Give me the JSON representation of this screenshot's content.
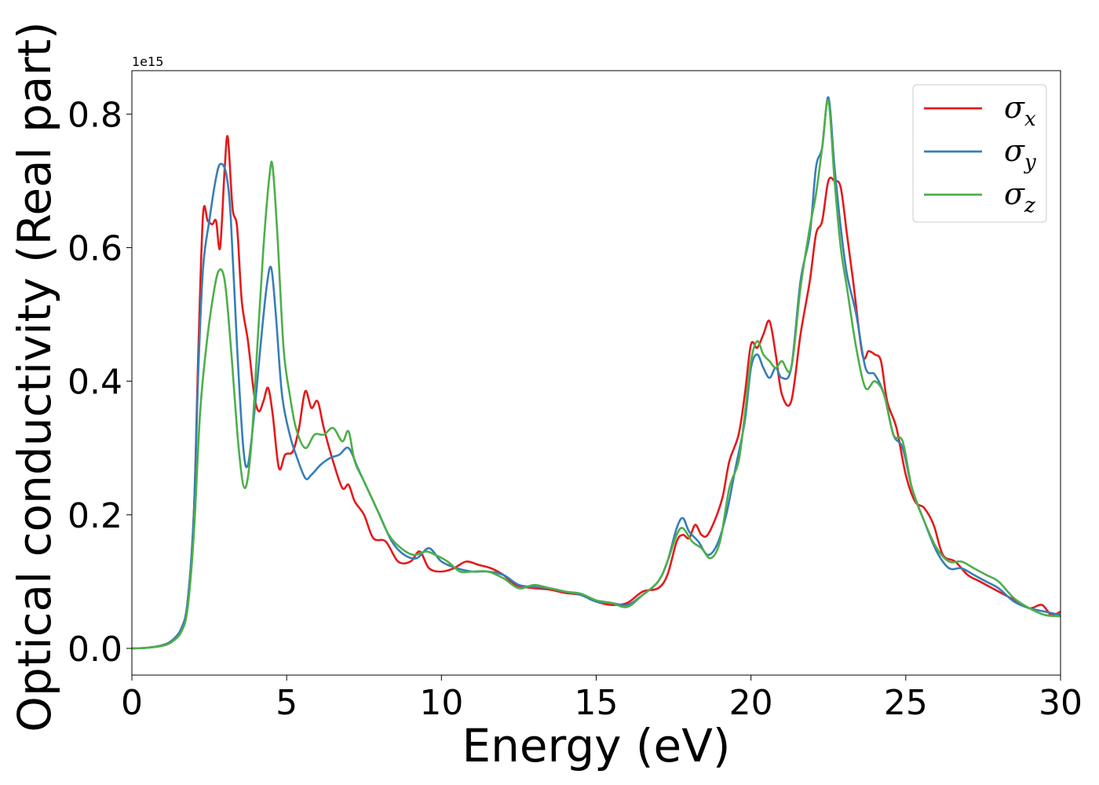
{
  "chart_data": {
    "type": "line",
    "title": "",
    "xlabel": "Energy (eV)",
    "ylabel": "Optical conductivity (Real part)",
    "y_offset_text": "1e15",
    "y_multiplier": 1000000000000000.0,
    "xlim": [
      0,
      30
    ],
    "ylim": [
      -0.04,
      0.865
    ],
    "xticks": [
      0,
      5,
      10,
      15,
      20,
      25,
      30
    ],
    "xtick_labels": [
      "0",
      "5",
      "10",
      "15",
      "20",
      "25",
      "30"
    ],
    "yticks": [
      0.0,
      0.2,
      0.4,
      0.6,
      0.8
    ],
    "ytick_labels": [
      "0.0",
      "0.2",
      "0.4",
      "0.6",
      "0.8"
    ],
    "grid": false,
    "legend_position": "top-right",
    "series": [
      {
        "name": "σx",
        "symbol": "σ",
        "subscript": "x",
        "color": "#e41a1c",
        "points": [
          [
            0,
            0
          ],
          [
            0.5,
            0.001
          ],
          [
            1.0,
            0.005
          ],
          [
            1.3,
            0.012
          ],
          [
            1.6,
            0.03
          ],
          [
            1.8,
            0.07
          ],
          [
            2.0,
            0.2
          ],
          [
            2.15,
            0.45
          ],
          [
            2.3,
            0.65
          ],
          [
            2.45,
            0.64
          ],
          [
            2.6,
            0.635
          ],
          [
            2.72,
            0.64
          ],
          [
            2.85,
            0.6
          ],
          [
            3.0,
            0.72
          ],
          [
            3.1,
            0.765
          ],
          [
            3.25,
            0.66
          ],
          [
            3.4,
            0.63
          ],
          [
            3.55,
            0.52
          ],
          [
            3.75,
            0.46
          ],
          [
            3.95,
            0.38
          ],
          [
            4.1,
            0.355
          ],
          [
            4.25,
            0.37
          ],
          [
            4.4,
            0.39
          ],
          [
            4.55,
            0.35
          ],
          [
            4.75,
            0.27
          ],
          [
            4.95,
            0.29
          ],
          [
            5.2,
            0.295
          ],
          [
            5.4,
            0.33
          ],
          [
            5.6,
            0.385
          ],
          [
            5.8,
            0.36
          ],
          [
            6.0,
            0.37
          ],
          [
            6.2,
            0.33
          ],
          [
            6.5,
            0.28
          ],
          [
            6.8,
            0.24
          ],
          [
            7.0,
            0.245
          ],
          [
            7.2,
            0.22
          ],
          [
            7.5,
            0.2
          ],
          [
            7.8,
            0.165
          ],
          [
            8.2,
            0.16
          ],
          [
            8.6,
            0.13
          ],
          [
            9.0,
            0.13
          ],
          [
            9.3,
            0.145
          ],
          [
            9.6,
            0.12
          ],
          [
            10.0,
            0.115
          ],
          [
            10.4,
            0.12
          ],
          [
            10.8,
            0.13
          ],
          [
            11.2,
            0.125
          ],
          [
            11.6,
            0.12
          ],
          [
            12.0,
            0.11
          ],
          [
            12.4,
            0.095
          ],
          [
            13.0,
            0.09
          ],
          [
            13.5,
            0.088
          ],
          [
            14.0,
            0.083
          ],
          [
            14.5,
            0.08
          ],
          [
            15.0,
            0.07
          ],
          [
            15.5,
            0.065
          ],
          [
            16.0,
            0.068
          ],
          [
            16.5,
            0.085
          ],
          [
            17.0,
            0.09
          ],
          [
            17.3,
            0.11
          ],
          [
            17.6,
            0.16
          ],
          [
            17.8,
            0.17
          ],
          [
            18.0,
            0.165
          ],
          [
            18.2,
            0.185
          ],
          [
            18.4,
            0.17
          ],
          [
            18.6,
            0.17
          ],
          [
            18.9,
            0.2
          ],
          [
            19.1,
            0.23
          ],
          [
            19.3,
            0.28
          ],
          [
            19.6,
            0.32
          ],
          [
            19.8,
            0.38
          ],
          [
            20.0,
            0.455
          ],
          [
            20.2,
            0.45
          ],
          [
            20.4,
            0.47
          ],
          [
            20.6,
            0.49
          ],
          [
            20.8,
            0.44
          ],
          [
            21.0,
            0.38
          ],
          [
            21.3,
            0.37
          ],
          [
            21.6,
            0.47
          ],
          [
            21.9,
            0.55
          ],
          [
            22.1,
            0.62
          ],
          [
            22.3,
            0.64
          ],
          [
            22.5,
            0.7
          ],
          [
            22.7,
            0.7
          ],
          [
            22.9,
            0.69
          ],
          [
            23.1,
            0.62
          ],
          [
            23.3,
            0.55
          ],
          [
            23.6,
            0.44
          ],
          [
            23.8,
            0.445
          ],
          [
            24.0,
            0.44
          ],
          [
            24.2,
            0.43
          ],
          [
            24.4,
            0.37
          ],
          [
            24.7,
            0.33
          ],
          [
            25.0,
            0.26
          ],
          [
            25.3,
            0.22
          ],
          [
            25.6,
            0.21
          ],
          [
            25.9,
            0.185
          ],
          [
            26.2,
            0.14
          ],
          [
            26.6,
            0.13
          ],
          [
            27.0,
            0.11
          ],
          [
            27.4,
            0.1
          ],
          [
            27.8,
            0.09
          ],
          [
            28.2,
            0.08
          ],
          [
            28.6,
            0.07
          ],
          [
            29.0,
            0.06
          ],
          [
            29.4,
            0.065
          ],
          [
            29.7,
            0.05
          ],
          [
            30.0,
            0.055
          ]
        ]
      },
      {
        "name": "σy",
        "symbol": "σ",
        "subscript": "y",
        "color": "#377eb8",
        "points": [
          [
            0,
            0
          ],
          [
            0.5,
            0.001
          ],
          [
            1.0,
            0.005
          ],
          [
            1.3,
            0.012
          ],
          [
            1.6,
            0.03
          ],
          [
            1.8,
            0.07
          ],
          [
            2.0,
            0.2
          ],
          [
            2.15,
            0.42
          ],
          [
            2.3,
            0.57
          ],
          [
            2.5,
            0.64
          ],
          [
            2.7,
            0.7
          ],
          [
            2.85,
            0.725
          ],
          [
            3.05,
            0.71
          ],
          [
            3.2,
            0.64
          ],
          [
            3.4,
            0.45
          ],
          [
            3.6,
            0.3
          ],
          [
            3.75,
            0.275
          ],
          [
            3.95,
            0.35
          ],
          [
            4.15,
            0.45
          ],
          [
            4.35,
            0.54
          ],
          [
            4.5,
            0.57
          ],
          [
            4.65,
            0.5
          ],
          [
            4.85,
            0.38
          ],
          [
            5.1,
            0.32
          ],
          [
            5.3,
            0.29
          ],
          [
            5.6,
            0.255
          ],
          [
            5.8,
            0.26
          ],
          [
            6.1,
            0.275
          ],
          [
            6.4,
            0.285
          ],
          [
            6.7,
            0.29
          ],
          [
            7.0,
            0.3
          ],
          [
            7.3,
            0.27
          ],
          [
            7.6,
            0.24
          ],
          [
            8.0,
            0.2
          ],
          [
            8.4,
            0.16
          ],
          [
            8.8,
            0.14
          ],
          [
            9.2,
            0.135
          ],
          [
            9.6,
            0.15
          ],
          [
            10.0,
            0.13
          ],
          [
            10.5,
            0.12
          ],
          [
            11.0,
            0.115
          ],
          [
            11.5,
            0.115
          ],
          [
            12.0,
            0.11
          ],
          [
            12.5,
            0.095
          ],
          [
            13.0,
            0.092
          ],
          [
            13.5,
            0.09
          ],
          [
            14.0,
            0.085
          ],
          [
            14.5,
            0.08
          ],
          [
            15.0,
            0.07
          ],
          [
            15.5,
            0.068
          ],
          [
            16.0,
            0.065
          ],
          [
            16.5,
            0.08
          ],
          [
            17.0,
            0.1
          ],
          [
            17.3,
            0.13
          ],
          [
            17.6,
            0.18
          ],
          [
            17.8,
            0.195
          ],
          [
            18.0,
            0.175
          ],
          [
            18.3,
            0.16
          ],
          [
            18.6,
            0.14
          ],
          [
            18.9,
            0.155
          ],
          [
            19.2,
            0.2
          ],
          [
            19.5,
            0.27
          ],
          [
            19.8,
            0.34
          ],
          [
            20.0,
            0.42
          ],
          [
            20.2,
            0.44
          ],
          [
            20.4,
            0.42
          ],
          [
            20.6,
            0.405
          ],
          [
            20.8,
            0.42
          ],
          [
            21.0,
            0.405
          ],
          [
            21.3,
            0.42
          ],
          [
            21.6,
            0.55
          ],
          [
            21.9,
            0.62
          ],
          [
            22.1,
            0.72
          ],
          [
            22.3,
            0.75
          ],
          [
            22.5,
            0.825
          ],
          [
            22.7,
            0.72
          ],
          [
            22.9,
            0.63
          ],
          [
            23.1,
            0.56
          ],
          [
            23.4,
            0.5
          ],
          [
            23.7,
            0.42
          ],
          [
            24.0,
            0.41
          ],
          [
            24.3,
            0.38
          ],
          [
            24.6,
            0.32
          ],
          [
            24.9,
            0.3
          ],
          [
            25.2,
            0.24
          ],
          [
            25.6,
            0.19
          ],
          [
            26.0,
            0.145
          ],
          [
            26.4,
            0.12
          ],
          [
            26.8,
            0.12
          ],
          [
            27.2,
            0.11
          ],
          [
            27.6,
            0.1
          ],
          [
            28.0,
            0.09
          ],
          [
            28.5,
            0.07
          ],
          [
            29.0,
            0.06
          ],
          [
            29.5,
            0.055
          ],
          [
            30.0,
            0.05
          ]
        ]
      },
      {
        "name": "σz",
        "symbol": "σ",
        "subscript": "z",
        "color": "#4daf4a",
        "points": [
          [
            0,
            0
          ],
          [
            0.5,
            0.001
          ],
          [
            1.0,
            0.004
          ],
          [
            1.3,
            0.01
          ],
          [
            1.6,
            0.025
          ],
          [
            1.8,
            0.06
          ],
          [
            2.0,
            0.17
          ],
          [
            2.2,
            0.35
          ],
          [
            2.4,
            0.45
          ],
          [
            2.6,
            0.52
          ],
          [
            2.8,
            0.565
          ],
          [
            3.0,
            0.55
          ],
          [
            3.2,
            0.45
          ],
          [
            3.45,
            0.3
          ],
          [
            3.65,
            0.24
          ],
          [
            3.85,
            0.3
          ],
          [
            4.05,
            0.45
          ],
          [
            4.25,
            0.6
          ],
          [
            4.45,
            0.71
          ],
          [
            4.55,
            0.72
          ],
          [
            4.7,
            0.62
          ],
          [
            4.9,
            0.45
          ],
          [
            5.1,
            0.38
          ],
          [
            5.3,
            0.33
          ],
          [
            5.6,
            0.3
          ],
          [
            5.9,
            0.32
          ],
          [
            6.2,
            0.32
          ],
          [
            6.5,
            0.33
          ],
          [
            6.8,
            0.31
          ],
          [
            7.0,
            0.325
          ],
          [
            7.2,
            0.28
          ],
          [
            7.5,
            0.25
          ],
          [
            7.9,
            0.21
          ],
          [
            8.3,
            0.17
          ],
          [
            8.7,
            0.15
          ],
          [
            9.1,
            0.14
          ],
          [
            9.5,
            0.145
          ],
          [
            9.8,
            0.14
          ],
          [
            10.2,
            0.13
          ],
          [
            10.6,
            0.115
          ],
          [
            11.0,
            0.115
          ],
          [
            11.5,
            0.115
          ],
          [
            12.0,
            0.105
          ],
          [
            12.5,
            0.09
          ],
          [
            13.0,
            0.095
          ],
          [
            13.5,
            0.09
          ],
          [
            14.0,
            0.085
          ],
          [
            14.5,
            0.082
          ],
          [
            15.0,
            0.072
          ],
          [
            15.5,
            0.068
          ],
          [
            16.0,
            0.062
          ],
          [
            16.5,
            0.08
          ],
          [
            17.0,
            0.1
          ],
          [
            17.3,
            0.13
          ],
          [
            17.6,
            0.17
          ],
          [
            17.8,
            0.18
          ],
          [
            18.1,
            0.16
          ],
          [
            18.4,
            0.15
          ],
          [
            18.7,
            0.135
          ],
          [
            19.0,
            0.16
          ],
          [
            19.3,
            0.24
          ],
          [
            19.6,
            0.28
          ],
          [
            19.8,
            0.35
          ],
          [
            20.0,
            0.43
          ],
          [
            20.2,
            0.46
          ],
          [
            20.4,
            0.44
          ],
          [
            20.6,
            0.43
          ],
          [
            20.8,
            0.42
          ],
          [
            21.0,
            0.43
          ],
          [
            21.3,
            0.42
          ],
          [
            21.6,
            0.54
          ],
          [
            21.9,
            0.63
          ],
          [
            22.1,
            0.68
          ],
          [
            22.3,
            0.75
          ],
          [
            22.5,
            0.82
          ],
          [
            22.7,
            0.7
          ],
          [
            22.9,
            0.6
          ],
          [
            23.1,
            0.54
          ],
          [
            23.4,
            0.45
          ],
          [
            23.7,
            0.39
          ],
          [
            24.0,
            0.4
          ],
          [
            24.3,
            0.38
          ],
          [
            24.6,
            0.32
          ],
          [
            24.9,
            0.31
          ],
          [
            25.2,
            0.24
          ],
          [
            25.6,
            0.19
          ],
          [
            26.0,
            0.15
          ],
          [
            26.4,
            0.13
          ],
          [
            26.8,
            0.13
          ],
          [
            27.2,
            0.12
          ],
          [
            27.6,
            0.11
          ],
          [
            28.0,
            0.1
          ],
          [
            28.5,
            0.075
          ],
          [
            29.0,
            0.06
          ],
          [
            29.5,
            0.05
          ],
          [
            30.0,
            0.048
          ]
        ]
      }
    ]
  }
}
